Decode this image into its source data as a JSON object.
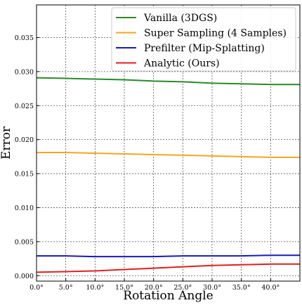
{
  "chart_data": {
    "type": "line",
    "xlabel": "Rotation Angle",
    "ylabel": "Error",
    "xlim": [
      0,
      45
    ],
    "ylim": [
      -0.0008,
      0.0398
    ],
    "grid": true,
    "legend_position": "top-right",
    "x_ticks": [
      0,
      5,
      10,
      15,
      20,
      25,
      30,
      35,
      40
    ],
    "x_tick_labels": [
      "0.0°",
      "5.0°",
      "10.0°",
      "15.0°",
      "20.0°",
      "25.0°",
      "30.0°",
      "35.0°",
      "40.0°"
    ],
    "y_ticks": [
      0.0,
      0.005,
      0.01,
      0.015,
      0.02,
      0.025,
      0.03,
      0.035
    ],
    "y_tick_labels": [
      "0.000",
      "0.005",
      "0.010",
      "0.015",
      "0.020",
      "0.025",
      "0.030",
      "0.035"
    ],
    "x": [
      0,
      5,
      10,
      15,
      20,
      25,
      30,
      35,
      40,
      45
    ],
    "series": [
      {
        "name": "Vanilla (3DGS)",
        "color": "#2a8a2a",
        "values": [
          0.0291,
          0.029,
          0.0289,
          0.0288,
          0.0286,
          0.0285,
          0.0283,
          0.0282,
          0.0281,
          0.0281
        ]
      },
      {
        "name": "Super Sampling (4 Samples)",
        "color": "#f5a623",
        "values": [
          0.0181,
          0.0181,
          0.018,
          0.0179,
          0.0178,
          0.0177,
          0.0176,
          0.0175,
          0.0174,
          0.0174
        ]
      },
      {
        "name": "Prefilter (Mip-Splatting)",
        "color": "#1a1ab8",
        "values": [
          0.0029,
          0.0029,
          0.0028,
          0.0028,
          0.0028,
          0.0029,
          0.0029,
          0.0029,
          0.003,
          0.003
        ]
      },
      {
        "name": "Analytic (Ours)",
        "color": "#e02020",
        "values": [
          0.0005,
          0.0006,
          0.0007,
          0.0009,
          0.0011,
          0.0013,
          0.0015,
          0.0016,
          0.0017,
          0.0017
        ]
      }
    ]
  }
}
